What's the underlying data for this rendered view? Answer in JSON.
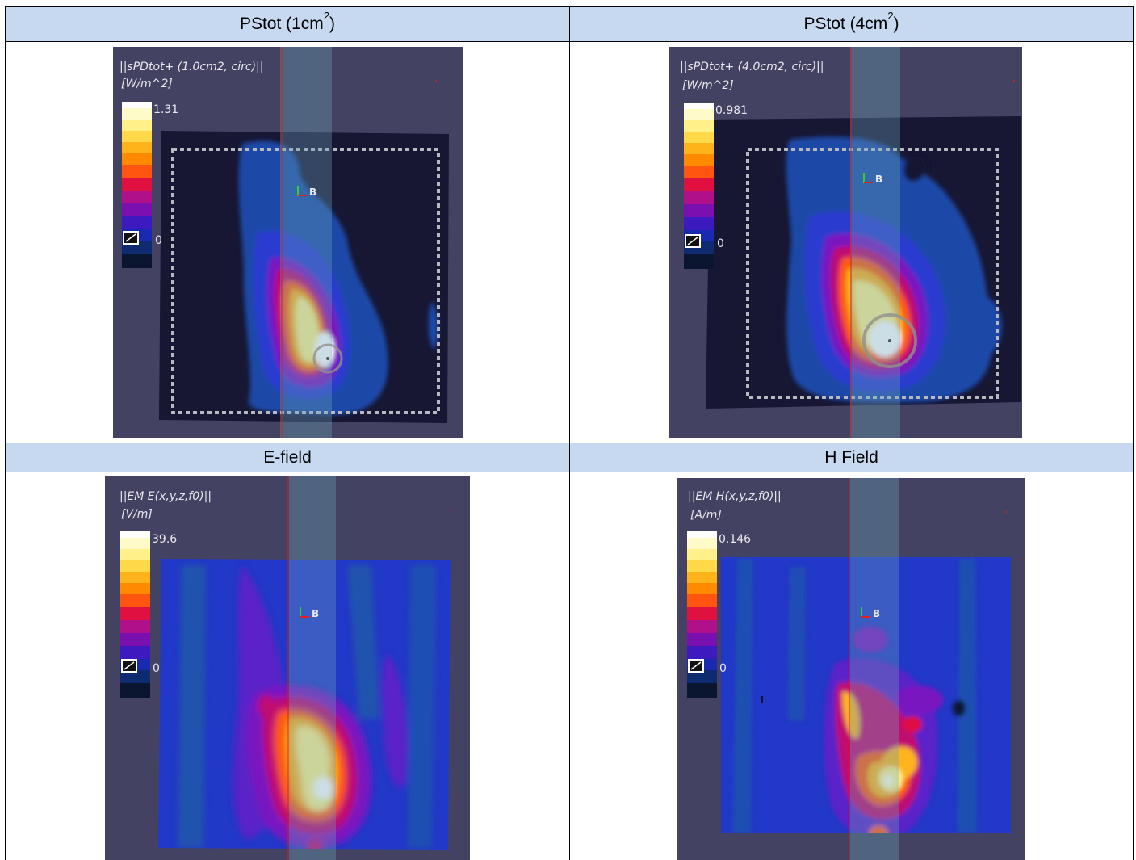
{
  "table": {
    "cells": [
      {
        "header": {
          "prefix": "PStot (1cm",
          "sup": "2",
          "suffix": ")"
        },
        "plot": {
          "title": "||sPDtot+ (1.0cm2, circ)||",
          "unit": "[W/m^2]",
          "max": "1.31",
          "min": "0",
          "marker": "B"
        }
      },
      {
        "header": {
          "prefix": "PStot (4cm",
          "sup": "2",
          "suffix": ")"
        },
        "plot": {
          "title": "||sPDtot+ (4.0cm2, circ)||",
          "unit": "[W/m^2]",
          "max": "0.981",
          "min": "0",
          "marker": "B"
        }
      },
      {
        "header": {
          "prefix": "E-field",
          "sup": "",
          "suffix": ""
        },
        "plot": {
          "title": "||EM E(x,y,z,f0)||",
          "unit": "[V/m]",
          "max": "39.6",
          "min": "0",
          "marker": "B"
        }
      },
      {
        "header": {
          "prefix": "H Field",
          "sup": "",
          "suffix": ""
        },
        "plot": {
          "title": "||EM H(x,y,z,f0)||",
          "unit": "[A/m]",
          "max": "0.146",
          "min": "0",
          "marker": "B"
        }
      }
    ]
  },
  "colors": {
    "header_bg": "#c6d9f0",
    "panel_bg": "#434262",
    "map_bg_pd": "#171633",
    "map_bg_field": "#2238c8",
    "colorbar": [
      "#ffffff",
      "#fffbc8",
      "#fff08a",
      "#ffd94a",
      "#ffb31a",
      "#ff8a00",
      "#ff5510",
      "#e01040",
      "#b0108a",
      "#7a10b0",
      "#3c1ac0",
      "#1a2ab0",
      "#0e2a70",
      "#0a1530"
    ]
  }
}
